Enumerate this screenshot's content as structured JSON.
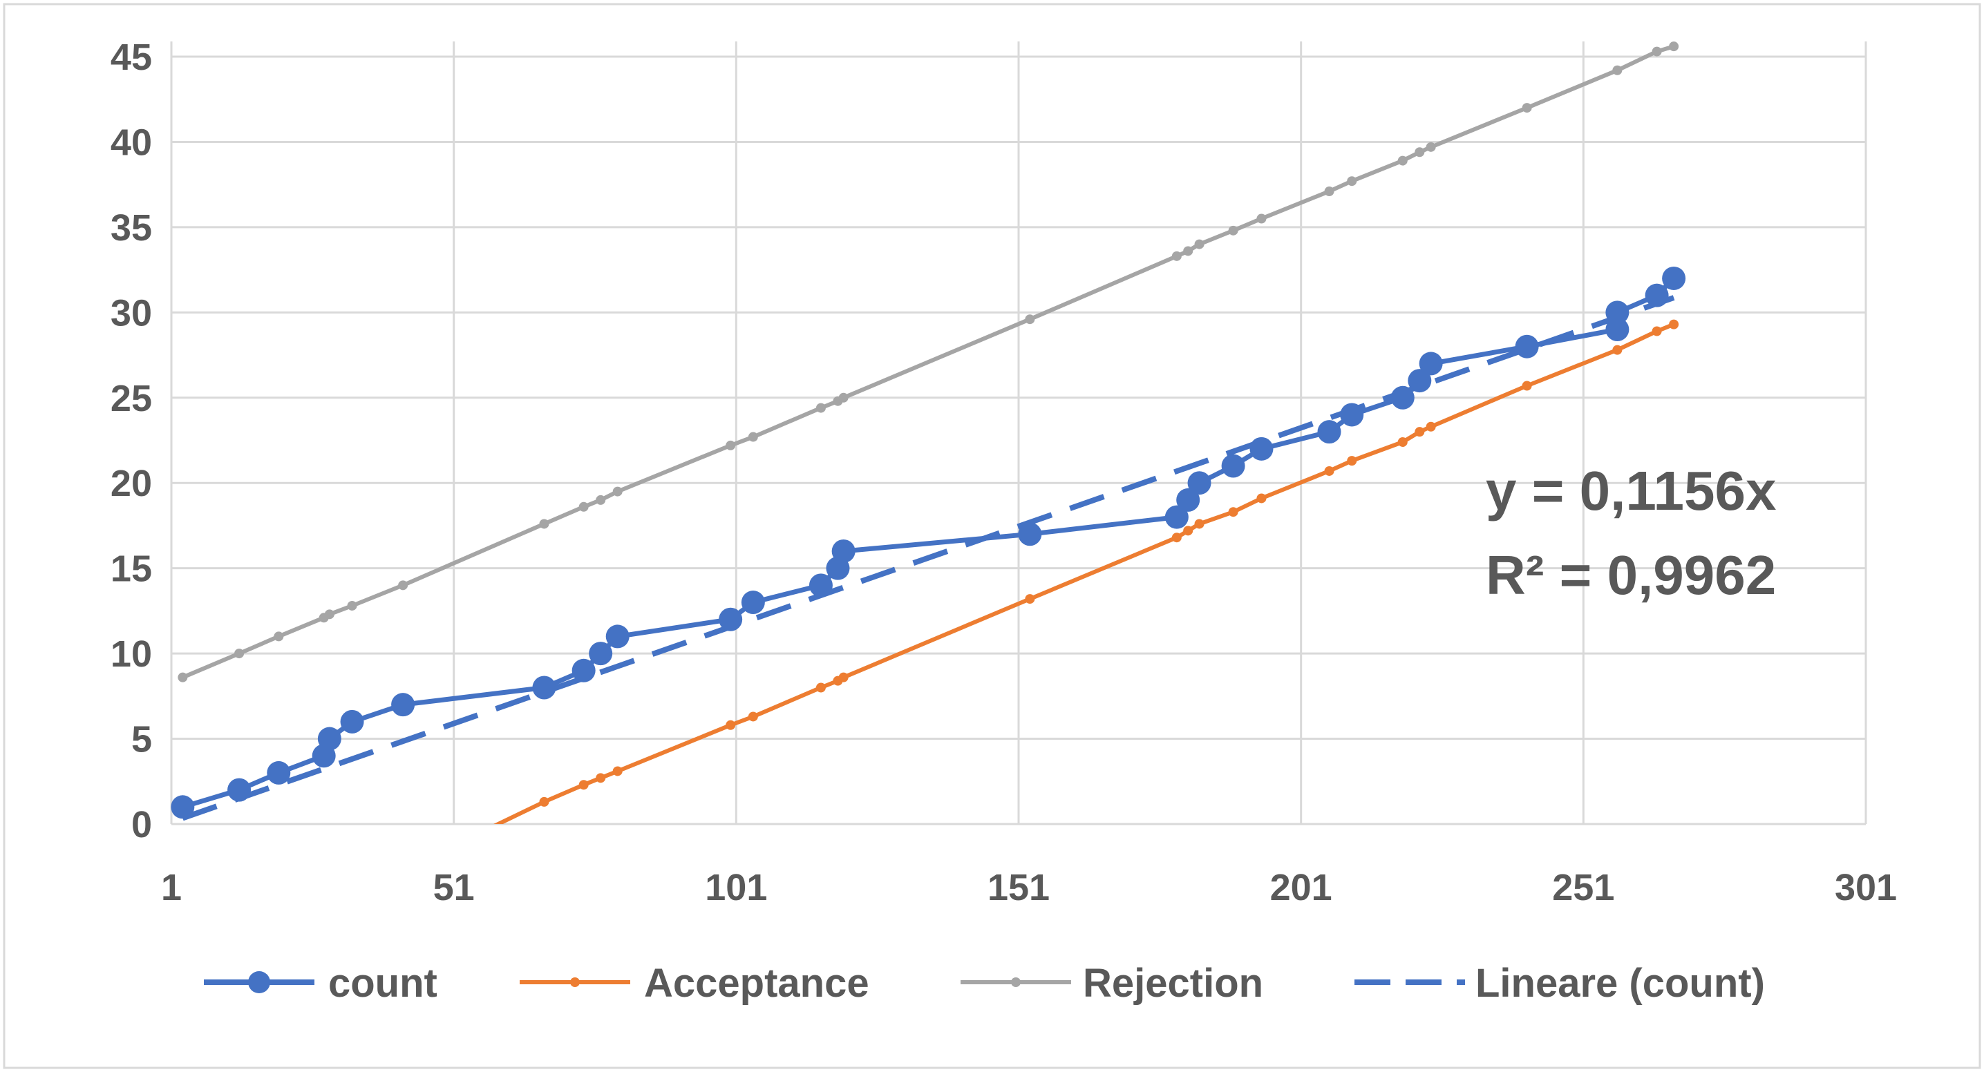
{
  "chart_data": {
    "type": "scatter",
    "title": "",
    "xlabel": "",
    "ylabel": "",
    "xlim": [
      1,
      301
    ],
    "ylim": [
      0,
      45
    ],
    "x_ticks": [
      "1",
      "51",
      "101",
      "151",
      "201",
      "251",
      "301"
    ],
    "y_ticks": [
      "0",
      "5",
      "10",
      "15",
      "20",
      "25",
      "30",
      "35",
      "40",
      "45"
    ],
    "grid": true,
    "legend_position": "bottom",
    "series": [
      {
        "name": "count",
        "color": "#4472C4",
        "style": "line-markers-large",
        "x": [
          3,
          13,
          20,
          28,
          29,
          33,
          42,
          67,
          74,
          77,
          80,
          100,
          104,
          116,
          119,
          120,
          153,
          179,
          181,
          183,
          189,
          194,
          206,
          210,
          219,
          222,
          224,
          241,
          257,
          257,
          264,
          267
        ],
        "y": [
          1,
          2,
          3,
          4,
          5,
          6,
          7,
          8,
          9,
          10,
          11,
          12,
          13,
          14,
          15,
          16,
          17,
          18,
          19,
          20,
          21,
          22,
          23,
          24,
          25,
          26,
          27,
          28,
          29,
          30,
          31,
          32
        ]
      },
      {
        "name": "Acceptance",
        "color": "#ED7D31",
        "style": "line-markers-small",
        "x": [
          57,
          67,
          74,
          77,
          80,
          100,
          104,
          116,
          119,
          120,
          153,
          179,
          181,
          183,
          189,
          194,
          206,
          210,
          219,
          222,
          224,
          241,
          257,
          264,
          267
        ],
        "y": [
          -0.3,
          1.3,
          2.3,
          2.7,
          3.1,
          5.8,
          6.3,
          8.0,
          8.4,
          8.6,
          13.2,
          16.8,
          17.2,
          17.6,
          18.3,
          19.1,
          20.7,
          21.3,
          22.4,
          23.0,
          23.3,
          25.7,
          27.8,
          28.9,
          29.3
        ]
      },
      {
        "name": "Rejection",
        "color": "#A5A5A5",
        "style": "line-markers-small",
        "x": [
          3,
          13,
          20,
          28,
          29,
          33,
          42,
          67,
          74,
          77,
          80,
          100,
          104,
          116,
          119,
          120,
          153,
          179,
          181,
          183,
          189,
          194,
          206,
          210,
          219,
          222,
          224,
          241,
          257,
          264,
          267
        ],
        "y": [
          8.6,
          10.0,
          11.0,
          12.1,
          12.3,
          12.8,
          14.0,
          17.6,
          18.6,
          19.0,
          19.5,
          22.2,
          22.7,
          24.4,
          24.8,
          25.0,
          29.6,
          33.3,
          33.6,
          34.0,
          34.8,
          35.5,
          37.1,
          37.7,
          38.9,
          39.4,
          39.7,
          42.0,
          44.2,
          45.3,
          45.6
        ]
      },
      {
        "name": "Lineare (count)",
        "color": "#4472C4",
        "style": "dashed-trendline",
        "slope": 0.1156,
        "x_range": [
          3,
          267
        ]
      }
    ],
    "annotations": {
      "equation": "y = 0,1156x",
      "r_squared": "R² = 0,9962"
    }
  }
}
